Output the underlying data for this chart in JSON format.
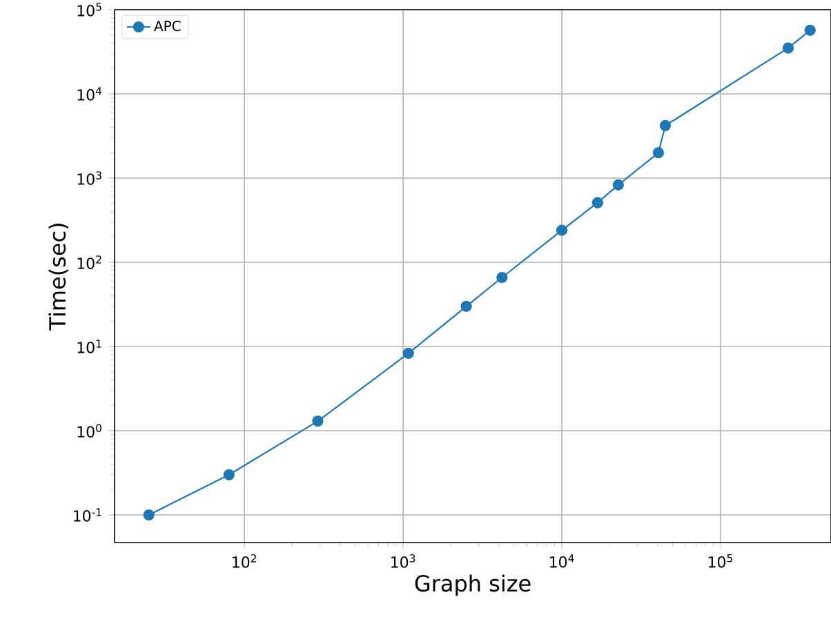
{
  "chart_data": {
    "type": "line",
    "xlabel": "Graph size",
    "ylabel": "Time(sec)",
    "x": [
      25,
      80,
      290,
      1080,
      2500,
      4200,
      10000,
      16800,
      22700,
      40600,
      44900,
      267000,
      367000
    ],
    "series": [
      {
        "name": "APC",
        "color": "#1f77b4",
        "values": [
          0.1,
          0.3,
          1.3,
          8.3,
          30,
          66,
          240,
          510,
          830,
          2000,
          4200,
          35000,
          57000
        ]
      }
    ],
    "log": "xy",
    "xlim": [
      15.2,
      497000
    ],
    "ylim": [
      0.047,
      100000
    ],
    "xticks": [
      {
        "value": 100,
        "label": "10$^{2}$"
      },
      {
        "value": 1000,
        "label": "10$^{3}$"
      },
      {
        "value": 10000,
        "label": "10$^{4}$"
      },
      {
        "value": 100000,
        "label": "10$^{5}$"
      }
    ],
    "yticks": [
      {
        "value": 0.1,
        "label": "10$^{-1}$"
      },
      {
        "value": 1,
        "label": "10$^{0}$"
      },
      {
        "value": 10,
        "label": "10$^{1}$"
      },
      {
        "value": 100,
        "label": "10$^{2}$"
      },
      {
        "value": 1000,
        "label": "10$^{3}$"
      },
      {
        "value": 10000,
        "label": "10$^{4}$"
      },
      {
        "value": 100000,
        "label": "10$^{5}$"
      }
    ],
    "grid": true,
    "legend": "top left",
    "marker": "circle",
    "line_style": "solid"
  }
}
